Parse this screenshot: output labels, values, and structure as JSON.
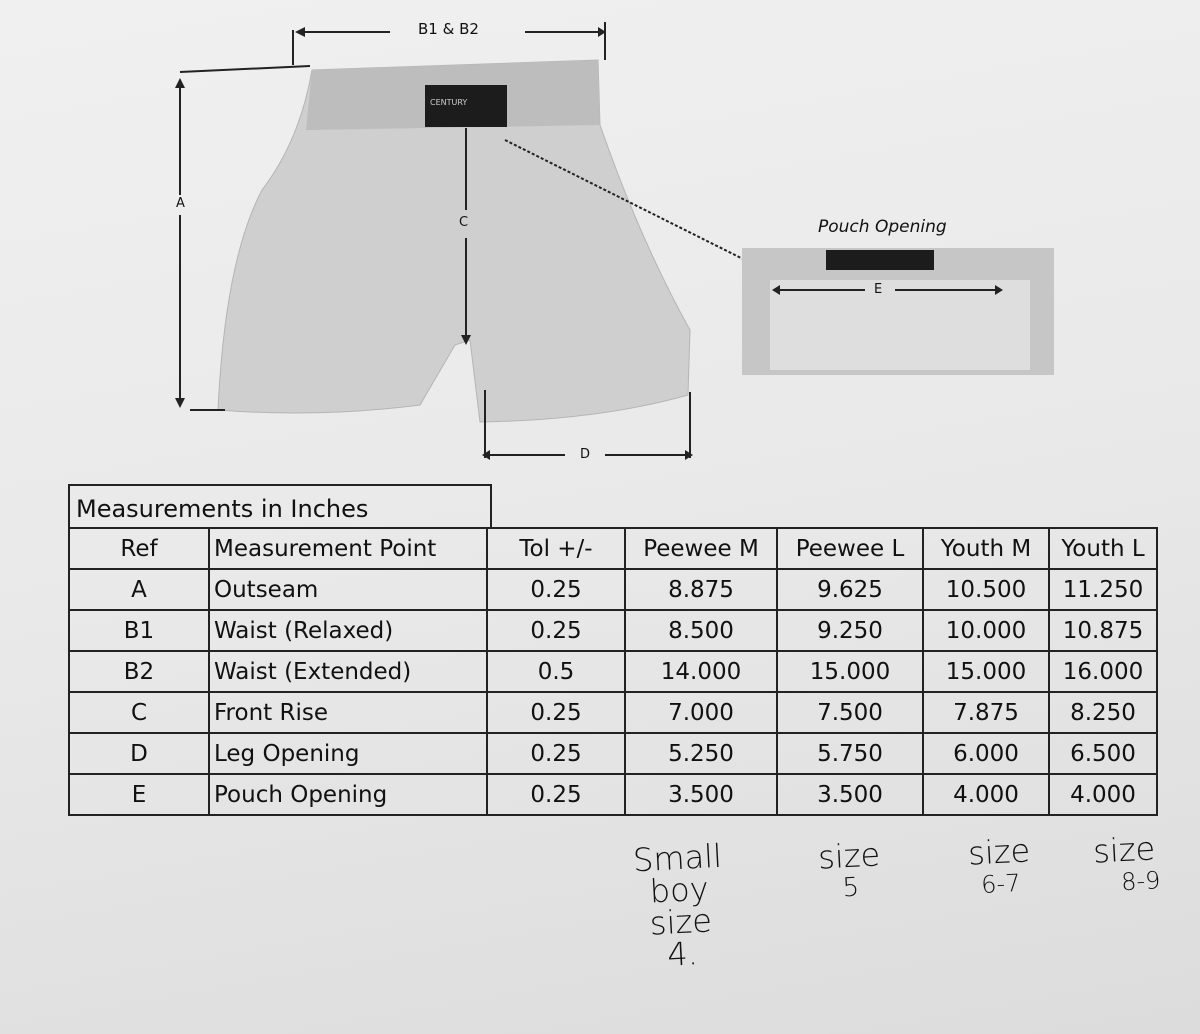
{
  "diagram": {
    "label_b": "B1 & B2",
    "label_a": "A",
    "label_c": "C",
    "label_d": "D",
    "label_e": "E",
    "brand_tag": "CENTURY",
    "pouch_title": "Pouch Opening"
  },
  "table": {
    "caption": "Measurements in Inches",
    "headers": [
      "Ref",
      "Measurement Point",
      "Tol +/-",
      "Peewee M",
      "Peewee L",
      "Youth M",
      "Youth L"
    ],
    "rows": [
      [
        "A",
        "Outseam",
        "0.25",
        "8.875",
        "9.625",
        "10.500",
        "11.250"
      ],
      [
        "B1",
        "Waist (Relaxed)",
        "0.25",
        "8.500",
        "9.250",
        "10.000",
        "10.875"
      ],
      [
        "B2",
        "Waist (Extended)",
        "0.5",
        "14.000",
        "15.000",
        "15.000",
        "16.000"
      ],
      [
        "C",
        "Front Rise",
        "0.25",
        "7.000",
        "7.500",
        "7.875",
        "8.250"
      ],
      [
        "D",
        "Leg Opening",
        "0.25",
        "5.250",
        "5.750",
        "6.000",
        "6.500"
      ],
      [
        "E",
        "Pouch Opening",
        "0.25",
        "3.500",
        "3.500",
        "4.000",
        "4.000"
      ]
    ]
  },
  "handwritten": [
    {
      "lines": [
        "Small",
        "boy",
        "size",
        "4."
      ]
    },
    {
      "lines": [
        "size",
        "5"
      ]
    },
    {
      "lines": [
        "size",
        "6-7"
      ]
    },
    {
      "lines": [
        "size",
        "8-9"
      ]
    }
  ]
}
